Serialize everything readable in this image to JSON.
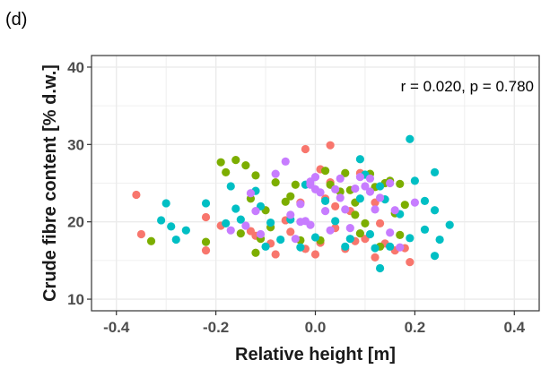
{
  "panel_label": "(d)",
  "chart_data": {
    "type": "scatter",
    "xlabel": "Relative height [m]",
    "ylabel": "Crude fibre content [% d.w.]",
    "annotation": "r = 0.020, p = 0.780",
    "xlim": [
      -0.45,
      0.45
    ],
    "ylim": [
      8.5,
      41.5
    ],
    "x_ticks": [
      -0.4,
      -0.2,
      0.0,
      0.2,
      0.4
    ],
    "x_tick_labels": [
      "-0.4",
      "-0.2",
      "0.0",
      "0.2",
      "0.4"
    ],
    "y_ticks": [
      10,
      20,
      30,
      40
    ],
    "y_tick_labels": [
      "10",
      "20",
      "30",
      "40"
    ],
    "grid": true,
    "background": "#ffffff",
    "grid_color": "#ebebeb",
    "legend": "none",
    "series": [
      {
        "color": "#F8766D",
        "points": [
          [
            -0.36,
            23.5
          ],
          [
            -0.35,
            18.4
          ],
          [
            -0.22,
            20.6
          ],
          [
            -0.22,
            16.3
          ],
          [
            -0.19,
            19.5
          ],
          [
            -0.13,
            18.8
          ],
          [
            -0.12,
            18.2
          ],
          [
            -0.09,
            17.2
          ],
          [
            -0.08,
            15.8
          ],
          [
            -0.06,
            20.2
          ],
          [
            -0.05,
            18.7
          ],
          [
            -0.03,
            22.5
          ],
          [
            -0.02,
            16.5
          ],
          [
            0.0,
            15.8
          ],
          [
            0.01,
            17.3
          ],
          [
            0.02,
            23.0
          ],
          [
            0.01,
            26.8
          ],
          [
            -0.02,
            29.4
          ],
          [
            0.03,
            29.9
          ],
          [
            0.03,
            25.1
          ],
          [
            0.04,
            22.0
          ],
          [
            0.06,
            16.5
          ],
          [
            0.07,
            21.4
          ],
          [
            0.08,
            17.5
          ],
          [
            0.09,
            26.3
          ],
          [
            0.12,
            22.5
          ],
          [
            0.13,
            19.8
          ],
          [
            0.14,
            17.2
          ],
          [
            0.16,
            16.3
          ],
          [
            0.18,
            16.6
          ],
          [
            0.19,
            14.8
          ],
          [
            0.12,
            15.4
          ],
          [
            0.04,
            19.2
          ],
          [
            0.1,
            17.8
          ]
        ]
      },
      {
        "color": "#7CAE00",
        "points": [
          [
            -0.33,
            17.5
          ],
          [
            -0.22,
            17.4
          ],
          [
            -0.19,
            27.7
          ],
          [
            -0.18,
            26.4
          ],
          [
            -0.16,
            28.0
          ],
          [
            -0.14,
            27.3
          ],
          [
            -0.12,
            26.0
          ],
          [
            -0.12,
            16.0
          ],
          [
            -0.11,
            17.8
          ],
          [
            -0.1,
            21.5
          ],
          [
            -0.09,
            19.3
          ],
          [
            -0.08,
            25.1
          ],
          [
            -0.06,
            22.6
          ],
          [
            -0.05,
            23.3
          ],
          [
            -0.04,
            24.8
          ],
          [
            -0.03,
            17.6
          ],
          [
            0.01,
            17.6
          ],
          [
            0.02,
            26.6
          ],
          [
            0.03,
            24.8
          ],
          [
            0.05,
            23.9
          ],
          [
            0.06,
            26.3
          ],
          [
            0.07,
            24.1
          ],
          [
            0.08,
            22.5
          ],
          [
            0.08,
            20.9
          ],
          [
            0.09,
            18.5
          ],
          [
            0.1,
            19.8
          ],
          [
            0.11,
            26.2
          ],
          [
            0.12,
            24.5
          ],
          [
            0.13,
            16.8
          ],
          [
            0.14,
            25.0
          ],
          [
            0.15,
            25.3
          ],
          [
            0.16,
            21.1
          ],
          [
            0.17,
            24.9
          ],
          [
            0.18,
            22.2
          ],
          [
            0.17,
            18.3
          ],
          [
            -0.15,
            18.5
          ],
          [
            -0.13,
            23.0
          ]
        ]
      },
      {
        "color": "#00BFC4",
        "points": [
          [
            -0.3,
            22.4
          ],
          [
            -0.31,
            20.2
          ],
          [
            -0.29,
            19.4
          ],
          [
            -0.28,
            17.7
          ],
          [
            -0.26,
            18.9
          ],
          [
            -0.22,
            22.4
          ],
          [
            -0.18,
            19.8
          ],
          [
            -0.17,
            24.6
          ],
          [
            -0.16,
            21.7
          ],
          [
            -0.15,
            20.3
          ],
          [
            -0.12,
            24.0
          ],
          [
            -0.11,
            22.0
          ],
          [
            -0.1,
            16.8
          ],
          [
            -0.09,
            19.9
          ],
          [
            -0.07,
            17.7
          ],
          [
            -0.05,
            20.3
          ],
          [
            -0.03,
            16.7
          ],
          [
            -0.02,
            24.8
          ],
          [
            0.0,
            18.0
          ],
          [
            0.02,
            22.7
          ],
          [
            0.04,
            20.1
          ],
          [
            0.06,
            16.8
          ],
          [
            0.07,
            17.8
          ],
          [
            0.09,
            23.0
          ],
          [
            0.09,
            28.1
          ],
          [
            0.1,
            26.1
          ],
          [
            0.11,
            18.4
          ],
          [
            0.12,
            16.6
          ],
          [
            0.13,
            24.6
          ],
          [
            0.14,
            22.9
          ],
          [
            0.15,
            16.8
          ],
          [
            0.13,
            14.0
          ],
          [
            0.17,
            21.0
          ],
          [
            0.19,
            30.7
          ],
          [
            0.2,
            25.3
          ],
          [
            0.22,
            22.7
          ],
          [
            0.22,
            19.0
          ],
          [
            0.24,
            26.4
          ],
          [
            0.24,
            21.5
          ],
          [
            0.25,
            17.7
          ],
          [
            0.27,
            19.6
          ],
          [
            0.24,
            15.6
          ],
          [
            0.19,
            17.9
          ]
        ]
      },
      {
        "color": "#C77CFF",
        "points": [
          [
            -0.17,
            18.9
          ],
          [
            -0.14,
            19.5
          ],
          [
            -0.12,
            21.4
          ],
          [
            -0.08,
            26.2
          ],
          [
            -0.06,
            27.8
          ],
          [
            -0.05,
            20.9
          ],
          [
            -0.04,
            17.8
          ],
          [
            -0.03,
            22.3
          ],
          [
            -0.02,
            20.1
          ],
          [
            -0.01,
            19.6
          ],
          [
            -0.01,
            25.2
          ],
          [
            -0.01,
            24.8
          ],
          [
            0.0,
            25.8
          ],
          [
            0.0,
            24.2
          ],
          [
            0.01,
            23.8
          ],
          [
            0.02,
            21.4
          ],
          [
            0.03,
            18.9
          ],
          [
            0.04,
            24.2
          ],
          [
            0.05,
            23.1
          ],
          [
            0.05,
            25.6
          ],
          [
            0.06,
            21.6
          ],
          [
            0.07,
            19.2
          ],
          [
            0.08,
            24.3
          ],
          [
            0.09,
            25.8
          ],
          [
            0.1,
            24.6
          ],
          [
            0.11,
            23.9
          ],
          [
            0.12,
            21.6
          ],
          [
            0.13,
            23.1
          ],
          [
            0.15,
            25.0
          ],
          [
            0.15,
            18.6
          ],
          [
            0.16,
            21.5
          ],
          [
            0.17,
            16.7
          ],
          [
            0.2,
            22.5
          ],
          [
            -0.03,
            20.0
          ],
          [
            0.11,
            25.6
          ],
          [
            -0.11,
            18.4
          ],
          [
            -0.13,
            23.7
          ]
        ]
      }
    ]
  }
}
